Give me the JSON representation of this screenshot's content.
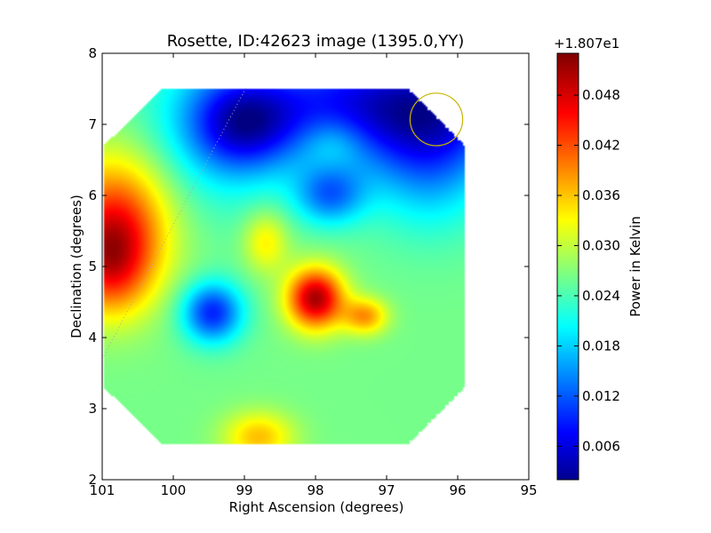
{
  "chart_data": {
    "type": "heatmap",
    "title": "Rosette, ID:42623 image (1395.0,YY)",
    "xlabel": "Right Ascension (degrees)",
    "ylabel": "Declination (degrees)",
    "xlim": [
      101,
      95
    ],
    "ylim": [
      2,
      8
    ],
    "x_ticks": [
      101,
      100,
      99,
      98,
      97,
      96,
      95
    ],
    "y_ticks": [
      2,
      3,
      4,
      5,
      6,
      7,
      8
    ],
    "colorbar": {
      "label": "Power in Kelvin",
      "offset_text": "+1.807e1",
      "colormap": "jet",
      "range": [
        0.002,
        0.053
      ],
      "ticks": [
        "0.006",
        "0.012",
        "0.018",
        "0.024",
        "0.030",
        "0.036",
        "0.042",
        "0.048"
      ],
      "tick_values": [
        0.006,
        0.012,
        0.018,
        0.024,
        0.03,
        0.036,
        0.042,
        0.048
      ]
    },
    "map": {
      "background_value": 0.027,
      "footprint_ra": [
        100.15,
        96.7,
        95.9,
        95.9,
        96.7,
        100.15,
        100.98,
        100.98
      ],
      "footprint_dec": [
        7.5,
        7.5,
        6.7,
        3.3,
        2.5,
        2.5,
        3.3,
        6.7
      ],
      "features": [
        {
          "ra": 98.0,
          "dec": 4.55,
          "sigma_ra": 0.28,
          "sigma_dec": 0.3,
          "delta": 0.024
        },
        {
          "ra": 97.3,
          "dec": 4.3,
          "sigma_ra": 0.22,
          "sigma_dec": 0.18,
          "delta": 0.012
        },
        {
          "ra": 98.7,
          "dec": 5.35,
          "sigma_ra": 0.22,
          "sigma_dec": 0.3,
          "delta": 0.008
        },
        {
          "ra": 100.8,
          "dec": 5.6,
          "sigma_ra": 0.55,
          "sigma_dec": 0.7,
          "delta": 0.017
        },
        {
          "ra": 100.9,
          "dec": 5.0,
          "sigma_ra": 0.4,
          "sigma_dec": 0.5,
          "delta": 0.012
        },
        {
          "ra": 99.45,
          "dec": 4.35,
          "sigma_ra": 0.3,
          "sigma_dec": 0.3,
          "delta": -0.017
        },
        {
          "ra": 98.8,
          "dec": 2.6,
          "sigma_ra": 0.35,
          "sigma_dec": 0.25,
          "delta": 0.01
        },
        {
          "ra": 97.0,
          "dec": 7.3,
          "sigma_ra": 1.5,
          "sigma_dec": 0.6,
          "delta": -0.02
        },
        {
          "ra": 99.0,
          "dec": 7.0,
          "sigma_ra": 0.5,
          "sigma_dec": 0.45,
          "delta": -0.013
        },
        {
          "ra": 97.8,
          "dec": 6.0,
          "sigma_ra": 0.35,
          "sigma_dec": 0.3,
          "delta": -0.012
        },
        {
          "ra": 96.4,
          "dec": 6.5,
          "sigma_ra": 0.6,
          "sigma_dec": 0.7,
          "delta": -0.01
        },
        {
          "ra": 99.4,
          "dec": 6.8,
          "sigma_ra": 0.7,
          "sigma_dec": 0.8,
          "delta": -0.006
        },
        {
          "ra": 97.75,
          "dec": 6.75,
          "sigma_ra": 0.3,
          "sigma_dec": 0.25,
          "delta": 0.004
        }
      ],
      "beam_circle": {
        "ra": 96.3,
        "dec": 7.07,
        "radius_deg": 0.37,
        "color": "#c8b400"
      },
      "dotted_line": {
        "ra": [
          101.0,
          98.97
        ],
        "dec": [
          3.7,
          7.53
        ],
        "color": "#aaaaaa"
      }
    }
  }
}
